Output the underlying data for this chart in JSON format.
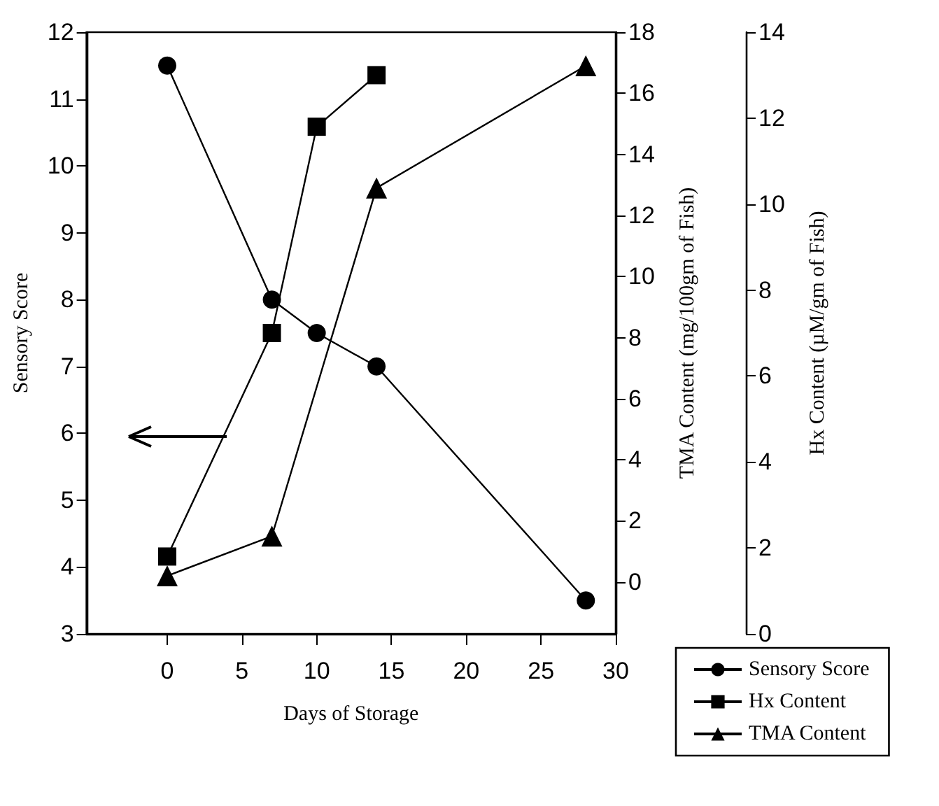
{
  "chart_data": {
    "type": "line",
    "xlabel": "Days of Storage",
    "ylabel": "Sensory Score",
    "y2label": "TMA Content (mg/100gm of Fish)",
    "y3label": "Hx Content (µM/gm of Fish)",
    "xlim": [
      -5.4,
      30
    ],
    "xticks": [
      0,
      5,
      10,
      15,
      20,
      25,
      30
    ],
    "ylim": [
      3,
      12
    ],
    "yticks": [
      3,
      4,
      5,
      6,
      7,
      8,
      9,
      10,
      11,
      12
    ],
    "y2lim": [
      -1.7,
      18
    ],
    "y2ticks": [
      0,
      2,
      4,
      6,
      8,
      10,
      12,
      14,
      16,
      18
    ],
    "y3lim": [
      0,
      14
    ],
    "y3ticks": [
      0,
      2,
      4,
      6,
      8,
      10,
      12,
      14
    ],
    "legend": "bottom right",
    "grid": false,
    "line_style": "solid",
    "series": [
      {
        "name": "Sensory Score",
        "color": "#000000",
        "marker": "circle",
        "x": [
          0,
          7,
          10,
          14,
          28
        ],
        "values": [
          11.5,
          8,
          7.5,
          7,
          3.5
        ]
      },
      {
        "name": "Hx Content",
        "color": "#000000",
        "marker": "square",
        "axis": "y3",
        "x": [
          0,
          7,
          10,
          14
        ],
        "values": [
          1.8,
          7.0,
          11.8,
          13.0
        ]
      },
      {
        "name": "TMA Content",
        "color": "#000000",
        "marker": "triangle",
        "axis": "y2",
        "x": [
          0,
          7,
          14,
          28
        ],
        "values": [
          0.2,
          1.5,
          12.9,
          16.9
        ]
      }
    ]
  }
}
